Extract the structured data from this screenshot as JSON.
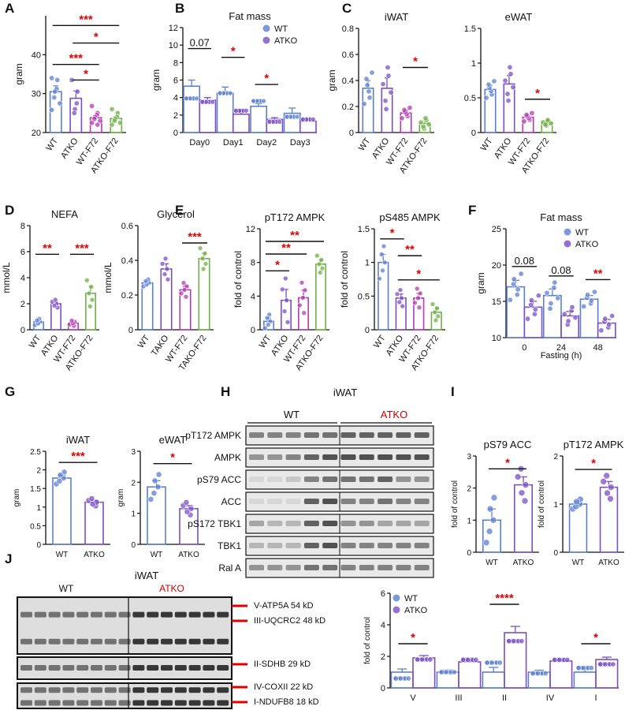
{
  "panel_letters": [
    "A",
    "B",
    "C",
    "D",
    "E",
    "F",
    "G",
    "H",
    "I",
    "J"
  ],
  "colors": {
    "WT": "#5b7fd0",
    "ATKO": "#7a4fc4",
    "WT-F72": "#b33ab3",
    "ATKO-F72": "#6fb046",
    "TAKO": "#7a4fc4",
    "TAKO-F72": "#6fb046",
    "sig": "#e00000",
    "atko_label": "#cc0000"
  },
  "chart_data": [
    {
      "id": "A",
      "type": "bar",
      "title": "",
      "ylabel": "gram",
      "ylim": [
        20,
        50
      ],
      "yticks": [
        20,
        30,
        40
      ],
      "categories": [
        "WT",
        "ATKO",
        "WT-F72",
        "ATKO-F72"
      ],
      "values": [
        30.5,
        28.8,
        23.8,
        23.6
      ],
      "errors": [
        1.5,
        1.9,
        0.6,
        0.6
      ],
      "points": [
        [
          34,
          33.5,
          31.2,
          30.5,
          29,
          27.5,
          25.8
        ],
        [
          33.5,
          30.5,
          27.5,
          26,
          25
        ],
        [
          26.8,
          25,
          24.5,
          24,
          23.5,
          23,
          22.5,
          22
        ],
        [
          26,
          25,
          24,
          23.5,
          23,
          22.5,
          22
        ]
      ],
      "annotations": [
        {
          "text": "***",
          "from": 0,
          "to": 3,
          "y": 47.5
        },
        {
          "text": "*",
          "from": 1,
          "to": 3,
          "y": 43
        },
        {
          "text": "***",
          "from": 0,
          "to": 2,
          "y": 37.5
        },
        {
          "text": "*",
          "from": 1,
          "to": 2,
          "y": 33.5
        }
      ]
    },
    {
      "id": "B",
      "type": "bar",
      "title": "Fat mass",
      "ylabel": "gram",
      "ylim": [
        0,
        12
      ],
      "yticks": [
        0,
        2,
        4,
        6,
        8,
        10,
        12
      ],
      "categories": [
        "Day0",
        "Day1",
        "Day2",
        "Day3"
      ],
      "series": [
        {
          "name": "WT",
          "values": [
            5.3,
            4.5,
            3.0,
            2.2
          ],
          "errors": [
            0.7,
            0.7,
            0.3,
            0.6
          ]
        },
        {
          "name": "ATKO",
          "values": [
            3.7,
            2.1,
            1.5,
            1.3
          ],
          "errors": [
            0.3,
            0.3,
            0.2,
            0.3
          ]
        }
      ],
      "annotations": [
        {
          "text": "0.07",
          "day": 0,
          "y": 9.6
        },
        {
          "text": "*",
          "day": 1,
          "y": 8.6
        },
        {
          "text": "*",
          "day": 2,
          "y": 5.5
        }
      ]
    },
    {
      "id": "C-iWAT",
      "type": "bar",
      "title": "iWAT",
      "ylabel": "gram",
      "ylim": [
        0,
        0.8
      ],
      "yticks": [
        0,
        0.2,
        0.4,
        0.6,
        0.8
      ],
      "categories": [
        "WT",
        "ATKO",
        "WT-F72",
        "ATKO-F72"
      ],
      "values": [
        0.34,
        0.34,
        0.15,
        0.07
      ],
      "errors": [
        0.06,
        0.08,
        0.02,
        0.02
      ],
      "annotations": [
        {
          "text": "*",
          "from": 2,
          "to": 3,
          "y": 0.5
        }
      ]
    },
    {
      "id": "C-eWAT",
      "type": "bar",
      "title": "eWAT",
      "ylabel": "",
      "ylim": [
        0,
        1.5
      ],
      "yticks": [
        0,
        0.5,
        1.0,
        1.5
      ],
      "categories": [
        "WT",
        "ATKO",
        "WT-F72",
        "ATKO-F72"
      ],
      "values": [
        0.62,
        0.7,
        0.22,
        0.14
      ],
      "errors": [
        0.06,
        0.12,
        0.03,
        0.02
      ],
      "annotations": [
        {
          "text": "*",
          "from": 2,
          "to": 3,
          "y": 0.48
        }
      ]
    },
    {
      "id": "D-NEFA",
      "type": "bar",
      "title": "NEFA",
      "ylabel": "mmol/L",
      "ylim": [
        0,
        8
      ],
      "yticks": [
        0,
        2,
        4,
        6,
        8
      ],
      "categories": [
        "WT",
        "ATKO",
        "WT-F72",
        "ATKO-F72"
      ],
      "values": [
        0.6,
        2.0,
        0.5,
        2.8
      ],
      "errors": [
        0.12,
        0.15,
        0.1,
        0.5
      ],
      "annotations": [
        {
          "text": "**",
          "from": 0,
          "to": 1,
          "y": 5.8
        },
        {
          "text": "***",
          "from": 2,
          "to": 3,
          "y": 5.8
        }
      ]
    },
    {
      "id": "D-Glycerol",
      "type": "bar",
      "title": "Glycerol",
      "ylabel": "mmol/L",
      "ylim": [
        0,
        0.6
      ],
      "yticks": [
        0,
        0.2,
        0.4,
        0.6
      ],
      "categories": [
        "WT",
        "TAKO",
        "WT-F72",
        "TAKO-F72"
      ],
      "values": [
        0.27,
        0.35,
        0.23,
        0.41
      ],
      "errors": [
        0.01,
        0.03,
        0.02,
        0.03
      ],
      "annotations": [
        {
          "text": "***",
          "from": 2,
          "to": 3,
          "y": 0.5
        }
      ]
    },
    {
      "id": "E-pT172",
      "type": "bar",
      "title": "pT172 AMPK",
      "ylabel": "fold of control",
      "ylim": [
        0,
        12
      ],
      "yticks": [
        0,
        4,
        8,
        12
      ],
      "categories": [
        "WT",
        "ATKO",
        "WT-F72",
        "ATKO-F72"
      ],
      "values": [
        1.0,
        3.5,
        3.8,
        7.8
      ],
      "errors": [
        0.4,
        1.3,
        0.9,
        0.5
      ],
      "annotations": [
        {
          "text": "**",
          "from": 0,
          "to": 3,
          "y": 10.5
        },
        {
          "text": "**",
          "from": 0,
          "to": 2,
          "y": 9.0
        },
        {
          "text": "*",
          "from": 0,
          "to": 1,
          "y": 7.0
        }
      ]
    },
    {
      "id": "E-pS485",
      "type": "bar",
      "title": "pS485 AMPK",
      "ylabel": "fold of control",
      "ylim": [
        0,
        1.5
      ],
      "yticks": [
        0,
        0.5,
        1.0,
        1.5
      ],
      "categories": [
        "WT",
        "ATKO",
        "WT-F72",
        "ATKO-F72"
      ],
      "values": [
        1.0,
        0.47,
        0.47,
        0.26
      ],
      "errors": [
        0.12,
        0.06,
        0.07,
        0.06
      ],
      "annotations": [
        {
          "text": "*",
          "from": 0,
          "to": 1,
          "y": 1.35
        },
        {
          "text": "**",
          "from": 1,
          "to": 2,
          "y": 1.1
        },
        {
          "text": "*",
          "from": 1,
          "to": 3,
          "y": 0.74
        }
      ]
    },
    {
      "id": "F",
      "type": "bar",
      "title": "Fat mass",
      "ylabel": "gram",
      "xlabel": "Fasting (h)",
      "ylim": [
        10,
        25
      ],
      "yticks": [
        10,
        15,
        20,
        25
      ],
      "categories": [
        "0",
        "24",
        "48"
      ],
      "series": [
        {
          "name": "WT",
          "values": [
            17.0,
            15.8,
            15.3
          ],
          "errors": [
            0.9,
            0.9,
            0.5
          ]
        },
        {
          "name": "ATKO",
          "values": [
            14.2,
            13.0,
            12.0
          ],
          "errors": [
            0.8,
            0.6,
            0.5
          ]
        }
      ],
      "annotations": [
        {
          "text": "0.08",
          "x": 0,
          "y": 19.8
        },
        {
          "text": "0.08",
          "x": 1,
          "y": 18.5
        },
        {
          "text": "**",
          "x": 2,
          "y": 18.0
        }
      ]
    },
    {
      "id": "G-iWAT",
      "type": "bar",
      "title": "iWAT",
      "ylabel": "gram",
      "ylim": [
        0,
        2.5
      ],
      "yticks": [
        0.0,
        0.5,
        1.0,
        1.5,
        2.0,
        2.5
      ],
      "categories": [
        "WT",
        "ATKO"
      ],
      "values": [
        1.78,
        1.13
      ],
      "errors": [
        0.08,
        0.05
      ],
      "annotations": [
        {
          "text": "***",
          "y": 2.2
        }
      ]
    },
    {
      "id": "G-eWAT",
      "type": "bar",
      "title": "eWAT",
      "ylabel": "gram",
      "ylim": [
        0,
        3
      ],
      "yticks": [
        0,
        1,
        2,
        3
      ],
      "categories": [
        "WT",
        "ATKO"
      ],
      "values": [
        1.85,
        1.15
      ],
      "errors": [
        0.2,
        0.1
      ],
      "annotations": [
        {
          "text": "*",
          "y": 2.6
        }
      ]
    },
    {
      "id": "I-pS79",
      "type": "bar",
      "title": "pS79 ACC",
      "ylabel": "fold of control",
      "ylim": [
        0,
        3
      ],
      "yticks": [
        0,
        1,
        2,
        3
      ],
      "categories": [
        "WT",
        "ATKO"
      ],
      "values": [
        1.0,
        2.1
      ],
      "errors": [
        0.35,
        0.25
      ],
      "annotations": [
        {
          "text": "*",
          "y": 2.6
        }
      ]
    },
    {
      "id": "I-pT172",
      "type": "bar",
      "title": "pT172 AMPK",
      "ylabel": "fold of control",
      "ylim": [
        0,
        2
      ],
      "yticks": [
        0,
        1,
        2
      ],
      "categories": [
        "WT",
        "ATKO"
      ],
      "values": [
        1.0,
        1.35
      ],
      "errors": [
        0.05,
        0.12
      ],
      "annotations": [
        {
          "text": "*",
          "y": 1.72
        }
      ]
    },
    {
      "id": "J",
      "type": "bar",
      "title": "",
      "ylabel": "fold of control",
      "ylim": [
        0,
        6
      ],
      "yticks": [
        0,
        2,
        4,
        6
      ],
      "categories": [
        "V",
        "III",
        "II",
        "IV",
        "I"
      ],
      "series": [
        {
          "name": "WT",
          "values": [
            1.0,
            1.0,
            1.0,
            1.0,
            1.0
          ],
          "errors": [
            0.2,
            0.15,
            0.3,
            0.12,
            0.2
          ]
        },
        {
          "name": "ATKO",
          "values": [
            1.9,
            1.65,
            3.5,
            1.7,
            1.8
          ],
          "errors": [
            0.15,
            0.1,
            0.4,
            0.12,
            0.15
          ]
        }
      ],
      "annotations": [
        {
          "text": "*",
          "x": 0,
          "y": 2.8
        },
        {
          "text": "****",
          "x": 2,
          "y": 5.3
        },
        {
          "text": "*",
          "x": 4,
          "y": 2.8
        }
      ]
    }
  ],
  "blot_H": {
    "title": "iWAT",
    "groups": [
      "WT",
      "ATKO"
    ],
    "rows": [
      "pT172 AMPK",
      "AMPK",
      "pS79 ACC",
      "ACC",
      "pS172 TBK1",
      "TBK1",
      "Ral A"
    ]
  },
  "blot_J": {
    "title": "iWAT",
    "groups": [
      "WT",
      "ATKO"
    ],
    "labels": [
      "V-ATP5A 54 kD",
      "III-UQCRC2 48 kD",
      "II-SDHB 29 kD",
      "IV-COXII 22 kD",
      "I-NDUFB8 18 kD"
    ]
  }
}
